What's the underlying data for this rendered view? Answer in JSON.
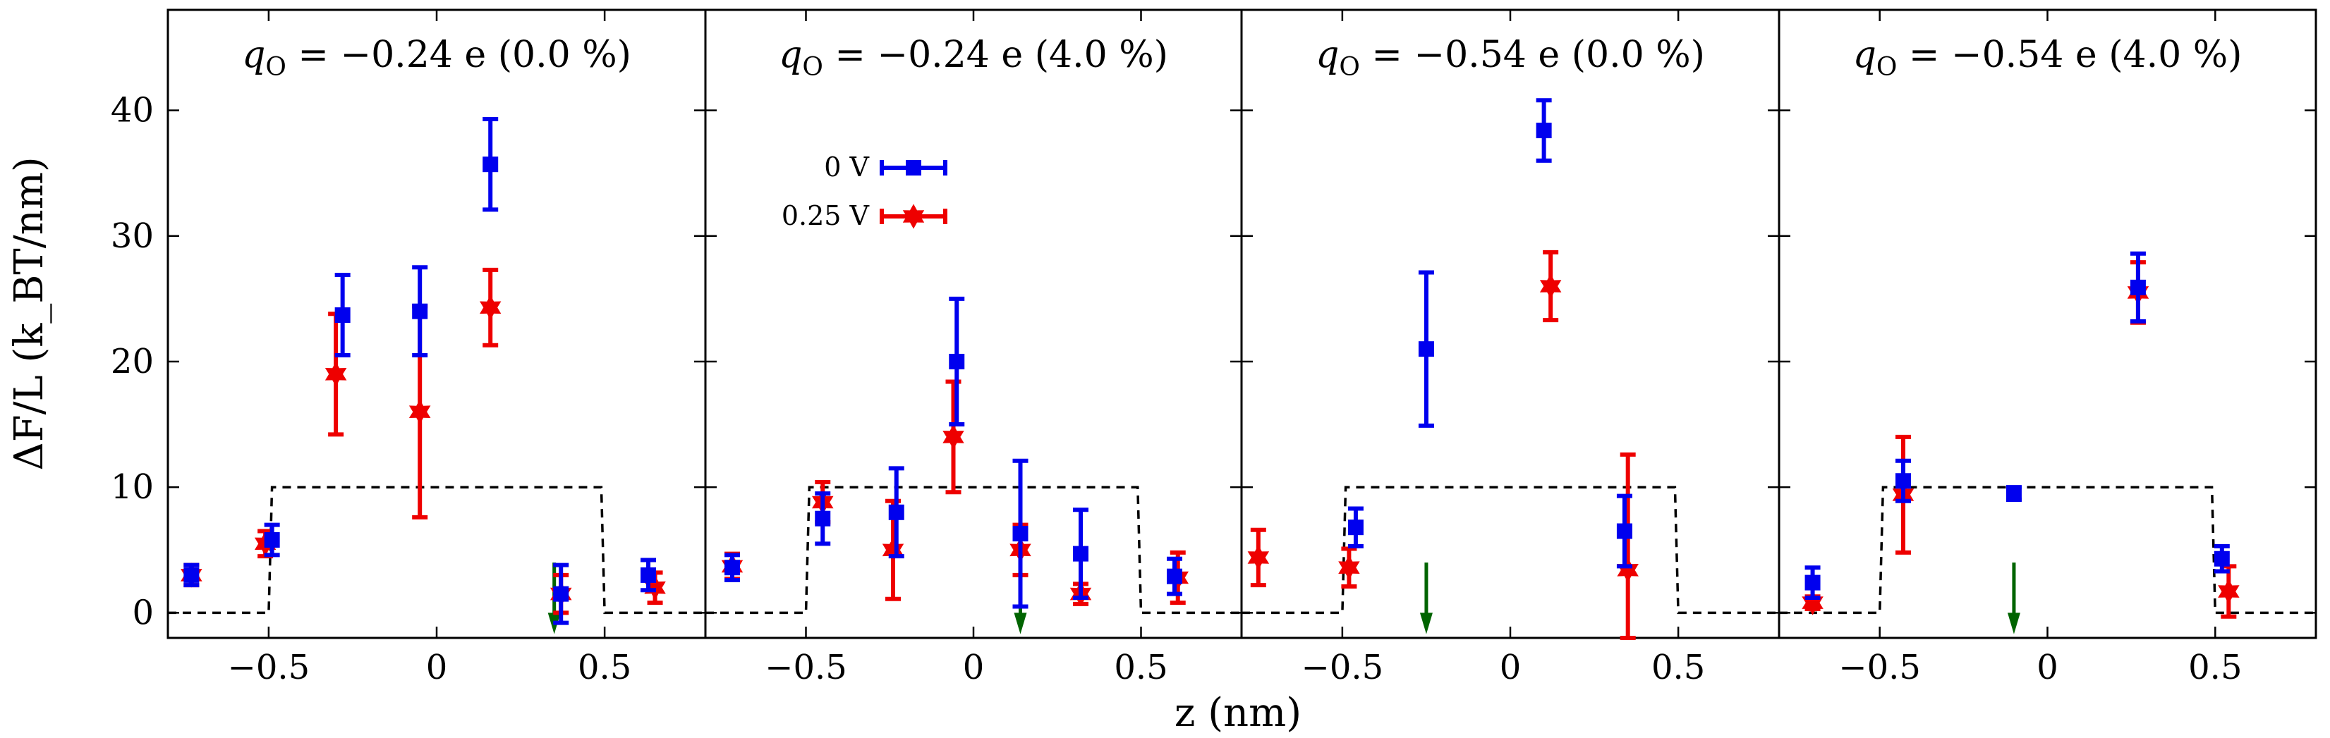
{
  "chart_data": {
    "type": "scatter",
    "y_axis": {
      "label": "ΔF/L (k_BT/nm)",
      "ylim": [
        -2,
        48
      ],
      "ticks": [
        0,
        10,
        20,
        30,
        40
      ]
    },
    "x_axis": {
      "label": "z (nm)",
      "xlim": [
        -0.8,
        0.8
      ],
      "ticks": [
        -0.5,
        0,
        0.5
      ],
      "tick_labels": [
        "−0.5",
        "0",
        "0.5"
      ]
    },
    "legend": {
      "location": "second panel, upper-left",
      "entries": [
        {
          "label": "0 V",
          "color": "#0000ee",
          "marker": "square"
        },
        {
          "label": "0.25 V",
          "color": "#ee0000",
          "marker": "star"
        }
      ]
    },
    "panels": [
      {
        "title": "q_O = −0.24 e (0.0 %)",
        "title_lhs": "q",
        "title_sub": "O",
        "title_rhs": " = −0.24 e (0.0 %)",
        "step": {
          "x": [
            -0.8,
            -0.5,
            -0.49,
            0.49,
            0.5,
            0.8
          ],
          "y": [
            0,
            0,
            10,
            10,
            0,
            0
          ]
        },
        "arrow_z": 0.35,
        "series": [
          {
            "name": "0 V",
            "points": [
              {
                "x": -0.73,
                "y": 3.0,
                "err": 0.8
              },
              {
                "x": -0.49,
                "y": 5.8,
                "err": 1.2
              },
              {
                "x": -0.28,
                "y": 23.7,
                "err": 3.2
              },
              {
                "x": -0.05,
                "y": 24.0,
                "err": 3.5
              },
              {
                "x": 0.16,
                "y": 35.7,
                "err": 3.6
              },
              {
                "x": 0.37,
                "y": 1.5,
                "err": 2.3
              },
              {
                "x": 0.63,
                "y": 3.0,
                "err": 1.2
              }
            ]
          },
          {
            "name": "0.25 V",
            "points": [
              {
                "x": -0.73,
                "y": 3.0,
                "err": 0.8
              },
              {
                "x": -0.51,
                "y": 5.5,
                "err": 1.0
              },
              {
                "x": -0.3,
                "y": 19.0,
                "err": 4.8
              },
              {
                "x": -0.05,
                "y": 16.0,
                "err": 8.4
              },
              {
                "x": 0.16,
                "y": 24.3,
                "err": 3.0
              },
              {
                "x": 0.37,
                "y": 1.5,
                "err": 1.5
              },
              {
                "x": 0.65,
                "y": 2.0,
                "err": 1.2
              }
            ]
          }
        ]
      },
      {
        "title": "q_O = −0.24 e (4.0 %)",
        "title_lhs": "q",
        "title_sub": "O",
        "title_rhs": " = −0.24 e (4.0 %)",
        "step": {
          "x": [
            -0.8,
            -0.5,
            -0.49,
            0.49,
            0.5,
            0.8
          ],
          "y": [
            0,
            0,
            10,
            10,
            0,
            0
          ]
        },
        "arrow_z": 0.14,
        "series": [
          {
            "name": "0 V",
            "points": [
              {
                "x": -0.72,
                "y": 3.6,
                "err": 1.0
              },
              {
                "x": -0.45,
                "y": 7.5,
                "err": 2.0
              },
              {
                "x": -0.23,
                "y": 8.0,
                "err": 3.5
              },
              {
                "x": -0.05,
                "y": 20.0,
                "err": 5.0
              },
              {
                "x": 0.14,
                "y": 6.3,
                "err": 5.8
              },
              {
                "x": 0.32,
                "y": 4.7,
                "err": 3.5
              },
              {
                "x": 0.6,
                "y": 2.9,
                "err": 1.4
              }
            ]
          },
          {
            "name": "0.25 V",
            "points": [
              {
                "x": -0.72,
                "y": 3.7,
                "err": 1.0
              },
              {
                "x": -0.45,
                "y": 8.8,
                "err": 1.6
              },
              {
                "x": -0.24,
                "y": 5.0,
                "err": 3.9
              },
              {
                "x": -0.06,
                "y": 14.0,
                "err": 4.4
              },
              {
                "x": 0.14,
                "y": 5.0,
                "err": 2.0
              },
              {
                "x": 0.32,
                "y": 1.5,
                "err": 0.8
              },
              {
                "x": 0.61,
                "y": 2.8,
                "err": 2.0
              }
            ]
          }
        ]
      },
      {
        "title": "q_O = −0.54 e (0.0 %)",
        "title_lhs": "q",
        "title_sub": "O",
        "title_rhs": " = −0.54 e (0.0 %)",
        "step": {
          "x": [
            -0.8,
            -0.5,
            -0.49,
            0.49,
            0.5,
            0.8
          ],
          "y": [
            0,
            0,
            10,
            10,
            0,
            0
          ]
        },
        "arrow_z": -0.25,
        "series": [
          {
            "name": "0 V",
            "points": [
              {
                "x": -0.46,
                "y": 6.8,
                "err": 1.5
              },
              {
                "x": -0.25,
                "y": 21.0,
                "err": 6.1
              },
              {
                "x": 0.1,
                "y": 38.4,
                "err": 2.4
              },
              {
                "x": 0.34,
                "y": 6.5,
                "err": 2.8
              }
            ]
          },
          {
            "name": "0.25 V",
            "points": [
              {
                "x": -0.75,
                "y": 4.4,
                "err": 2.2
              },
              {
                "x": -0.48,
                "y": 3.6,
                "err": 1.5
              },
              {
                "x": 0.12,
                "y": 26.0,
                "err": 2.7
              },
              {
                "x": 0.35,
                "y": 3.4,
                "err": 9.2
              }
            ]
          }
        ]
      },
      {
        "title": "q_O = −0.54 e (4.0 %)",
        "title_lhs": "q",
        "title_sub": "O",
        "title_rhs": " = −0.54 e (4.0 %)",
        "step": {
          "x": [
            -0.8,
            -0.5,
            -0.49,
            0.49,
            0.5,
            0.8
          ],
          "y": [
            0,
            0,
            10,
            10,
            0,
            0
          ]
        },
        "arrow_z": -0.1,
        "series": [
          {
            "name": "0 V",
            "points": [
              {
                "x": -0.7,
                "y": 2.4,
                "err": 1.2
              },
              {
                "x": -0.43,
                "y": 10.5,
                "err": 1.6
              },
              {
                "x": -0.1,
                "y": 9.5,
                "err": 0.5
              },
              {
                "x": 0.27,
                "y": 25.9,
                "err": 2.7
              },
              {
                "x": 0.52,
                "y": 4.3,
                "err": 1.0
              }
            ]
          },
          {
            "name": "0.25 V",
            "points": [
              {
                "x": -0.7,
                "y": 0.8,
                "err": 0.5
              },
              {
                "x": -0.43,
                "y": 9.4,
                "err": 4.6
              },
              {
                "x": 0.27,
                "y": 25.5,
                "err": 2.4
              },
              {
                "x": 0.54,
                "y": 1.7,
                "err": 2.0
              }
            ]
          }
        ]
      }
    ]
  }
}
